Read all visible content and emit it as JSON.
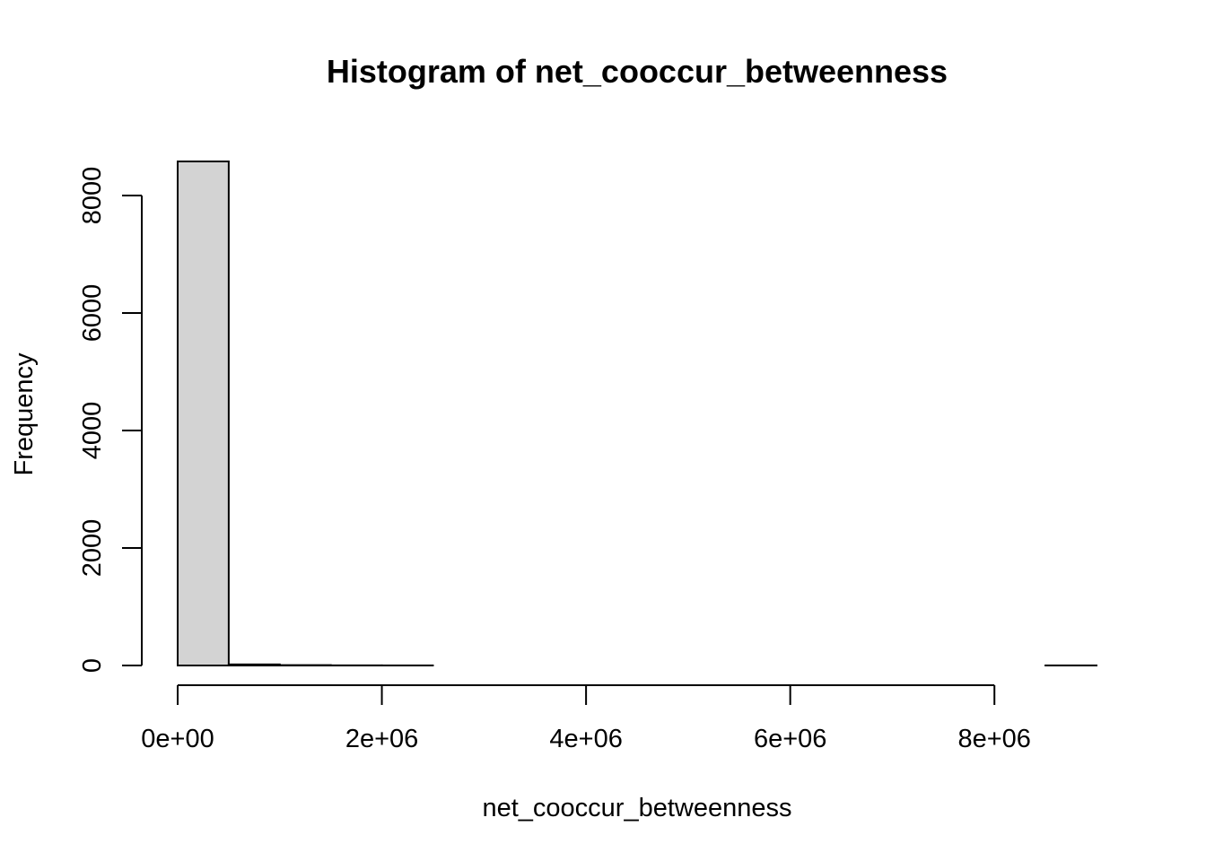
{
  "chart_data": {
    "type": "bar",
    "title": "Histogram of net_cooccur_betweenness",
    "xlabel": "net_cooccur_betweenness",
    "ylabel": "Frequency",
    "bar_color": "#d3d3d3",
    "border_color": "#000000",
    "bins": [
      {
        "start": 0,
        "end": 500000,
        "count": 8580
      },
      {
        "start": 500000,
        "end": 1000000,
        "count": 18
      },
      {
        "start": 1000000,
        "end": 1500000,
        "count": 6
      },
      {
        "start": 1500000,
        "end": 2000000,
        "count": 2
      },
      {
        "start": 2000000,
        "end": 2500000,
        "count": 1
      },
      {
        "start": 2500000,
        "end": 3000000,
        "count": 0
      },
      {
        "start": 3000000,
        "end": 3500000,
        "count": 0
      },
      {
        "start": 3500000,
        "end": 4000000,
        "count": 0
      },
      {
        "start": 4000000,
        "end": 4500000,
        "count": 0
      },
      {
        "start": 4500000,
        "end": 5000000,
        "count": 0
      },
      {
        "start": 5000000,
        "end": 5500000,
        "count": 0
      },
      {
        "start": 5500000,
        "end": 6000000,
        "count": 0
      },
      {
        "start": 6000000,
        "end": 6500000,
        "count": 0
      },
      {
        "start": 6500000,
        "end": 7000000,
        "count": 0
      },
      {
        "start": 7000000,
        "end": 7500000,
        "count": 0
      },
      {
        "start": 7500000,
        "end": 8000000,
        "count": 0
      },
      {
        "start": 8000000,
        "end": 8500000,
        "count": 0
      },
      {
        "start": 8500000,
        "end": 9000000,
        "count": 1
      }
    ],
    "xlim": [
      0,
      9000000
    ],
    "ylim": [
      0,
      8580
    ],
    "x_ticks": [
      {
        "value": 0,
        "label": "0e+00"
      },
      {
        "value": 2000000,
        "label": "2e+06"
      },
      {
        "value": 4000000,
        "label": "4e+06"
      },
      {
        "value": 6000000,
        "label": "6e+06"
      },
      {
        "value": 8000000,
        "label": "8e+06"
      }
    ],
    "y_ticks": [
      {
        "value": 0,
        "label": "0"
      },
      {
        "value": 2000,
        "label": "2000"
      },
      {
        "value": 4000,
        "label": "4000"
      },
      {
        "value": 6000,
        "label": "6000"
      },
      {
        "value": 8000,
        "label": "8000"
      }
    ],
    "grid": false,
    "legend": "none"
  }
}
